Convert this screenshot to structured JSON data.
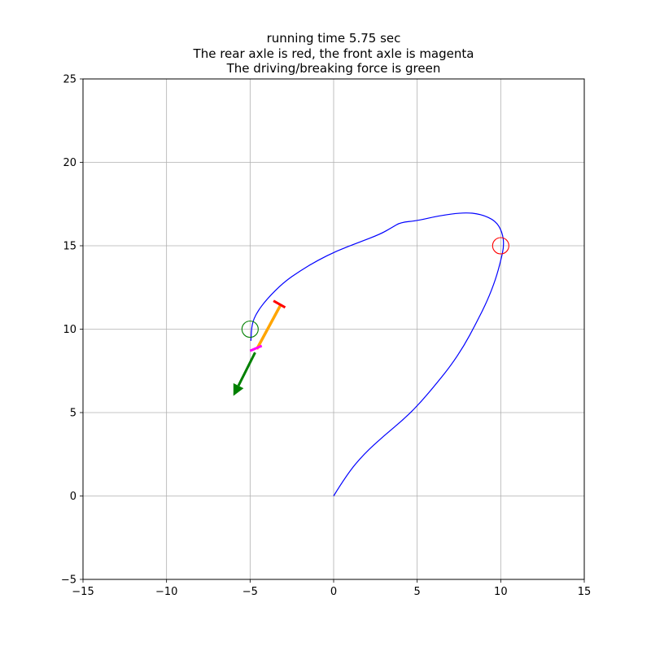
{
  "chart_data": {
    "type": "line",
    "title_lines": [
      "running time 5.75 sec",
      "The rear axle is red, the front axle is magenta",
      "The driving/breaking force is green"
    ],
    "xlabel": "",
    "ylabel": "",
    "xlim": [
      -15,
      15
    ],
    "ylim": [
      -5,
      25
    ],
    "xticks": [
      -15,
      -10,
      -5,
      0,
      5,
      10,
      15
    ],
    "yticks": [
      -5,
      0,
      5,
      10,
      15,
      20,
      25
    ],
    "xtick_labels": [
      "−15",
      "−10",
      "−5",
      "0",
      "5",
      "10",
      "15"
    ],
    "ytick_labels": [
      "−5",
      "0",
      "5",
      "10",
      "15",
      "20",
      "25"
    ],
    "grid": true,
    "series": [
      {
        "kind": "trajectory",
        "color": "#0000ff",
        "x": [
          0,
          0.8,
          1.8,
          3,
          4.2,
          5.2,
          6.2,
          7,
          7.8,
          8.5,
          9.2,
          9.7,
          10,
          10.2,
          10.1,
          9.7,
          8.8,
          7.8,
          6.3,
          5,
          4,
          3.5,
          2.8,
          1.5,
          0.2,
          -1,
          -2,
          -3,
          -4,
          -4.6,
          -4.9,
          -4.95
        ],
        "y": [
          0,
          1.3,
          2.5,
          3.6,
          4.6,
          5.6,
          6.8,
          7.8,
          9,
          10.3,
          11.7,
          13,
          14.1,
          15,
          15.8,
          16.5,
          16.9,
          17,
          16.8,
          16.5,
          16.4,
          16.1,
          15.7,
          15.2,
          14.7,
          14.1,
          13.5,
          12.8,
          11.8,
          11,
          10.3,
          9.3
        ]
      },
      {
        "kind": "car-body",
        "color": "#ffa500",
        "x": [
          -4.6,
          -3.2
        ],
        "y": [
          8.8,
          11.4
        ]
      },
      {
        "kind": "rear-axle",
        "color": "#ff0000",
        "x": [
          -3.6,
          -2.9
        ],
        "y": [
          11.7,
          11.3
        ]
      },
      {
        "kind": "front-axle",
        "color": "#ff00ff",
        "x": [
          -5.0,
          -4.3
        ],
        "y": [
          8.7,
          9.0
        ]
      },
      {
        "kind": "force-arrow",
        "color": "#008000",
        "x": [
          -4.7,
          -6.0
        ],
        "y": [
          8.6,
          6.0
        ]
      }
    ],
    "markers": [
      {
        "kind": "start-circle",
        "color": "#008000",
        "x": -5,
        "y": 10
      },
      {
        "kind": "target-circle",
        "color": "#ff0000",
        "x": 10,
        "y": 15
      }
    ]
  }
}
